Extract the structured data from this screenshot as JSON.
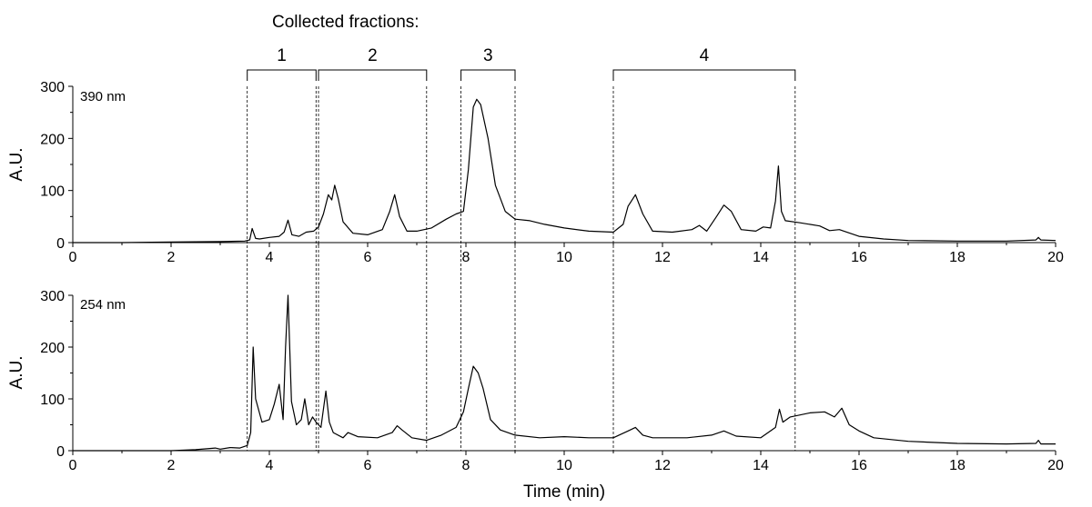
{
  "figure": {
    "heading": "Collected fractions:",
    "xlabel": "Time (min)",
    "fractions": [
      {
        "label": "1",
        "start": 3.55,
        "end": 4.95
      },
      {
        "label": "2",
        "start": 5.0,
        "end": 7.2
      },
      {
        "label": "3",
        "start": 7.9,
        "end": 9.0
      },
      {
        "label": "4",
        "start": 11.0,
        "end": 14.7
      }
    ]
  },
  "chart_data": [
    {
      "type": "line",
      "annotation": "390 nm",
      "xlabel": "",
      "ylabel": "A.U.",
      "xlim": [
        0,
        20
      ],
      "ylim": [
        0,
        300
      ],
      "x_ticks": [
        0,
        2,
        4,
        6,
        8,
        10,
        12,
        14,
        16,
        18,
        20
      ],
      "y_ticks": [
        0,
        100,
        200,
        300
      ],
      "series": [
        {
          "x": [
            0,
            1,
            2,
            3,
            3.5,
            3.6,
            3.65,
            3.72,
            3.8,
            4.0,
            4.2,
            4.3,
            4.38,
            4.46,
            4.6,
            4.75,
            4.9,
            5.0,
            5.1,
            5.2,
            5.27,
            5.33,
            5.4,
            5.5,
            5.7,
            6.0,
            6.3,
            6.45,
            6.55,
            6.65,
            6.8,
            7.0,
            7.3,
            7.6,
            7.8,
            7.95,
            8.05,
            8.15,
            8.22,
            8.3,
            8.45,
            8.6,
            8.8,
            9.0,
            9.3,
            9.6,
            10.0,
            10.5,
            11.0,
            11.2,
            11.3,
            11.45,
            11.6,
            11.8,
            12.2,
            12.6,
            12.75,
            12.9,
            13.1,
            13.25,
            13.4,
            13.6,
            13.9,
            14.05,
            14.2,
            14.3,
            14.36,
            14.42,
            14.5,
            14.8,
            15.2,
            15.4,
            15.6,
            16.0,
            16.5,
            17.0,
            18.0,
            19.0,
            19.6,
            19.65,
            19.7,
            20.0
          ],
          "y": [
            0,
            0,
            1,
            2,
            3,
            5,
            27,
            8,
            7,
            10,
            12,
            20,
            43,
            15,
            12,
            20,
            22,
            30,
            55,
            92,
            82,
            110,
            85,
            40,
            18,
            15,
            25,
            60,
            92,
            50,
            22,
            22,
            28,
            45,
            55,
            60,
            140,
            260,
            275,
            265,
            200,
            110,
            60,
            45,
            42,
            35,
            28,
            22,
            20,
            35,
            70,
            92,
            55,
            22,
            20,
            25,
            33,
            22,
            50,
            72,
            60,
            25,
            22,
            30,
            28,
            80,
            147,
            60,
            42,
            38,
            32,
            23,
            25,
            12,
            7,
            4,
            3,
            3,
            5,
            10,
            5,
            4
          ]
        }
      ]
    },
    {
      "type": "line",
      "annotation": "254 nm",
      "xlabel": "Time (min)",
      "ylabel": "A.U.",
      "xlim": [
        0,
        20
      ],
      "ylim": [
        0,
        300
      ],
      "x_ticks": [
        0,
        2,
        4,
        6,
        8,
        10,
        12,
        14,
        16,
        18,
        20
      ],
      "y_ticks": [
        0,
        100,
        200,
        300
      ],
      "series": [
        {
          "x": [
            0,
            1,
            2,
            2.5,
            2.9,
            3.0,
            3.2,
            3.4,
            3.55,
            3.62,
            3.67,
            3.72,
            3.85,
            4.0,
            4.1,
            4.2,
            4.28,
            4.33,
            4.38,
            4.45,
            4.55,
            4.65,
            4.72,
            4.8,
            4.88,
            4.95,
            5.05,
            5.15,
            5.22,
            5.3,
            5.5,
            5.6,
            5.8,
            6.2,
            6.5,
            6.6,
            6.7,
            6.9,
            7.2,
            7.5,
            7.8,
            7.95,
            8.05,
            8.15,
            8.25,
            8.35,
            8.5,
            8.7,
            9.0,
            9.5,
            10.0,
            10.5,
            11.0,
            11.3,
            11.45,
            11.6,
            11.8,
            12.5,
            13.0,
            13.25,
            13.5,
            14.0,
            14.3,
            14.38,
            14.45,
            14.6,
            15.0,
            15.3,
            15.5,
            15.65,
            15.8,
            16.0,
            16.3,
            17.0,
            18.0,
            19.0,
            19.6,
            19.65,
            19.7,
            20.0
          ],
          "y": [
            0,
            0,
            0,
            2,
            5,
            3,
            6,
            5,
            10,
            35,
            200,
            100,
            55,
            60,
            90,
            128,
            60,
            200,
            300,
            95,
            50,
            60,
            100,
            50,
            65,
            55,
            45,
            115,
            55,
            35,
            25,
            35,
            27,
            25,
            35,
            48,
            40,
            25,
            20,
            30,
            45,
            75,
            120,
            163,
            150,
            120,
            60,
            40,
            30,
            25,
            27,
            25,
            25,
            38,
            45,
            30,
            25,
            25,
            30,
            38,
            28,
            25,
            45,
            80,
            55,
            65,
            73,
            75,
            65,
            82,
            50,
            38,
            25,
            18,
            14,
            13,
            14,
            20,
            13,
            13
          ]
        }
      ]
    }
  ]
}
